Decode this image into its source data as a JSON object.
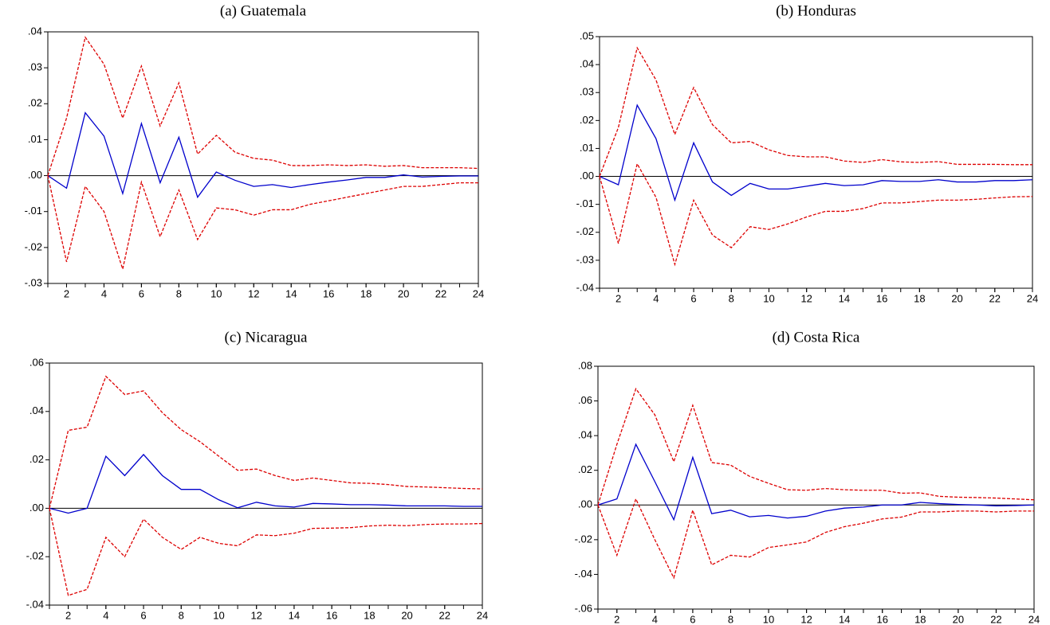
{
  "chart_data": [
    {
      "type": "line",
      "title": "(a) Guatemala",
      "x": [
        1,
        2,
        3,
        4,
        5,
        6,
        7,
        8,
        9,
        10,
        11,
        12,
        13,
        14,
        15,
        16,
        17,
        18,
        19,
        20,
        21,
        22,
        23,
        24
      ],
      "xlim": [
        1,
        24
      ],
      "xticks": [
        2,
        4,
        6,
        8,
        10,
        12,
        14,
        16,
        18,
        20,
        22,
        24
      ],
      "ylim": [
        -0.03,
        0.04
      ],
      "yticks": [
        {
          "value": 0.04,
          "label": ".04"
        },
        {
          "value": 0.03,
          "label": ".03"
        },
        {
          "value": 0.02,
          "label": ".02"
        },
        {
          "value": 0.01,
          "label": ".01"
        },
        {
          "value": 0,
          "label": ".00"
        },
        {
          "value": -0.01,
          "label": "-.01"
        },
        {
          "value": -0.02,
          "label": "-.02"
        },
        {
          "value": -0.03,
          "label": "-.03"
        }
      ],
      "zero_line": true,
      "series": [
        {
          "color": "#0000cc",
          "style": "solid",
          "values": [
            0,
            -0.0035,
            0.0175,
            0.011,
            -0.005,
            0.0145,
            -0.002,
            0.0107,
            -0.006,
            0.001,
            -0.0013,
            -0.003,
            -0.0025,
            -0.0033,
            -0.0025,
            -0.0018,
            -0.0012,
            -0.0005,
            -0.0005,
            0.0002,
            -0.0004,
            -0.0002,
            -0.0001,
            -0.0001
          ]
        },
        {
          "color": "#dd0000",
          "style": "dashed",
          "values": [
            0,
            0.016,
            0.0385,
            0.031,
            0.016,
            0.0305,
            0.0138,
            0.0258,
            0.006,
            0.0112,
            0.0065,
            0.0048,
            0.0043,
            0.0028,
            0.0028,
            0.003,
            0.0028,
            0.003,
            0.0026,
            0.0028,
            0.0022,
            0.0022,
            0.0022,
            0.002
          ]
        },
        {
          "color": "#dd0000",
          "style": "dashed",
          "values": [
            0,
            -0.024,
            -0.003,
            -0.01,
            -0.026,
            -0.0018,
            -0.017,
            -0.004,
            -0.0178,
            -0.009,
            -0.0095,
            -0.011,
            -0.0095,
            -0.0095,
            -0.008,
            -0.007,
            -0.006,
            -0.005,
            -0.004,
            -0.003,
            -0.003,
            -0.0025,
            -0.002,
            -0.002
          ]
        }
      ]
    },
    {
      "type": "line",
      "title": "(b) Honduras",
      "x": [
        1,
        2,
        3,
        4,
        5,
        6,
        7,
        8,
        9,
        10,
        11,
        12,
        13,
        14,
        15,
        16,
        17,
        18,
        19,
        20,
        21,
        22,
        23,
        24
      ],
      "xlim": [
        1,
        24
      ],
      "xticks": [
        2,
        4,
        6,
        8,
        10,
        12,
        14,
        16,
        18,
        20,
        22,
        24
      ],
      "ylim": [
        -0.04,
        0.05
      ],
      "yticks": [
        {
          "value": 0.05,
          "label": ".05"
        },
        {
          "value": 0.04,
          "label": ".04"
        },
        {
          "value": 0.03,
          "label": ".03"
        },
        {
          "value": 0.02,
          "label": ".02"
        },
        {
          "value": 0.01,
          "label": ".01"
        },
        {
          "value": 0,
          "label": ".00"
        },
        {
          "value": -0.01,
          "label": "-.01"
        },
        {
          "value": -0.02,
          "label": "-.02"
        },
        {
          "value": -0.03,
          "label": "-.03"
        },
        {
          "value": -0.04,
          "label": "-.04"
        }
      ],
      "zero_line": true,
      "series": [
        {
          "color": "#0000cc",
          "style": "solid",
          "values": [
            0,
            -0.003,
            0.0255,
            0.0135,
            -0.0085,
            0.012,
            -0.002,
            -0.0068,
            -0.0025,
            -0.0045,
            -0.0045,
            -0.0035,
            -0.0025,
            -0.0033,
            -0.003,
            -0.0015,
            -0.0018,
            -0.0018,
            -0.0012,
            -0.002,
            -0.002,
            -0.0015,
            -0.0015,
            -0.0012
          ]
        },
        {
          "color": "#dd0000",
          "style": "dashed",
          "values": [
            0,
            0.0175,
            0.046,
            0.0345,
            0.015,
            0.0318,
            0.0185,
            0.012,
            0.0125,
            0.0095,
            0.0075,
            0.007,
            0.007,
            0.0055,
            0.005,
            0.006,
            0.0052,
            0.005,
            0.0053,
            0.0043,
            0.0043,
            0.0043,
            0.0042,
            0.0042
          ]
        },
        {
          "color": "#dd0000",
          "style": "dashed",
          "values": [
            0,
            -0.024,
            0.0045,
            -0.0075,
            -0.0315,
            -0.0085,
            -0.021,
            -0.0255,
            -0.018,
            -0.019,
            -0.017,
            -0.0145,
            -0.0125,
            -0.0125,
            -0.0115,
            -0.0095,
            -0.0095,
            -0.009,
            -0.0085,
            -0.0085,
            -0.0082,
            -0.0077,
            -0.0073,
            -0.0072
          ]
        }
      ]
    },
    {
      "type": "line",
      "title": "(c) Nicaragua",
      "x": [
        1,
        2,
        3,
        4,
        5,
        6,
        7,
        8,
        9,
        10,
        11,
        12,
        13,
        14,
        15,
        16,
        17,
        18,
        19,
        20,
        21,
        22,
        23,
        24
      ],
      "xlim": [
        1,
        24
      ],
      "xticks": [
        2,
        4,
        6,
        8,
        10,
        12,
        14,
        16,
        18,
        20,
        22,
        24
      ],
      "ylim": [
        -0.04,
        0.06
      ],
      "yticks": [
        {
          "value": 0.06,
          "label": ".06"
        },
        {
          "value": 0.04,
          "label": ".04"
        },
        {
          "value": 0.02,
          "label": ".02"
        },
        {
          "value": 0,
          "label": ".00"
        },
        {
          "value": -0.02,
          "label": "-.02"
        },
        {
          "value": -0.04,
          "label": "-.04"
        }
      ],
      "zero_line": true,
      "series": [
        {
          "color": "#0000cc",
          "style": "solid",
          "values": [
            0,
            -0.002,
            0,
            0.0215,
            0.0135,
            0.0222,
            0.0135,
            0.0078,
            0.0078,
            0.0035,
            0.0002,
            0.0025,
            0.001,
            0.0005,
            0.002,
            0.0018,
            0.0015,
            0.0015,
            0.0013,
            0.001,
            0.001,
            0.001,
            0.0008,
            0.0008
          ]
        },
        {
          "color": "#dd0000",
          "style": "dashed",
          "values": [
            0,
            0.0322,
            0.0335,
            0.0545,
            0.047,
            0.0485,
            0.0395,
            0.0325,
            0.0275,
            0.0215,
            0.0157,
            0.0162,
            0.0135,
            0.0115,
            0.0125,
            0.0115,
            0.0105,
            0.0103,
            0.0098,
            0.009,
            0.0088,
            0.0085,
            0.0082,
            0.008
          ]
        },
        {
          "color": "#dd0000",
          "style": "dashed",
          "values": [
            0,
            -0.036,
            -0.0335,
            -0.012,
            -0.02,
            -0.0045,
            -0.012,
            -0.017,
            -0.012,
            -0.0145,
            -0.0155,
            -0.011,
            -0.0113,
            -0.0103,
            -0.0083,
            -0.0082,
            -0.008,
            -0.0073,
            -0.007,
            -0.0072,
            -0.0067,
            -0.0065,
            -0.0065,
            -0.0063
          ]
        }
      ]
    },
    {
      "type": "line",
      "title": "(d) Costa Rica",
      "x": [
        1,
        2,
        3,
        4,
        5,
        6,
        7,
        8,
        9,
        10,
        11,
        12,
        13,
        14,
        15,
        16,
        17,
        18,
        19,
        20,
        21,
        22,
        23,
        24
      ],
      "xlim": [
        1,
        24
      ],
      "xticks": [
        2,
        4,
        6,
        8,
        10,
        12,
        14,
        16,
        18,
        20,
        22,
        24
      ],
      "ylim": [
        -0.06,
        0.08
      ],
      "yticks": [
        {
          "value": 0.08,
          "label": ".08"
        },
        {
          "value": 0.06,
          "label": ".06"
        },
        {
          "value": 0.04,
          "label": ".04"
        },
        {
          "value": 0.02,
          "label": ".02"
        },
        {
          "value": 0,
          "label": ".00"
        },
        {
          "value": -0.02,
          "label": "-.02"
        },
        {
          "value": -0.04,
          "label": "-.04"
        },
        {
          "value": -0.06,
          "label": "-.06"
        }
      ],
      "zero_line": true,
      "series": [
        {
          "color": "#0000cc",
          "style": "solid",
          "values": [
            0,
            0.0035,
            0.035,
            0.0135,
            -0.0085,
            0.0275,
            -0.005,
            -0.003,
            -0.0068,
            -0.006,
            -0.0075,
            -0.0065,
            -0.0035,
            -0.0018,
            -0.0012,
            0,
            0,
            0.0015,
            0.0008,
            0.0003,
            0,
            -0.0005,
            -0.0003,
            0
          ]
        },
        {
          "color": "#dd0000",
          "style": "dashed",
          "values": [
            0,
            0.035,
            0.067,
            0.052,
            0.025,
            0.0575,
            0.0245,
            0.023,
            0.0165,
            0.0125,
            0.0088,
            0.0085,
            0.0095,
            0.0088,
            0.0085,
            0.0085,
            0.0068,
            0.007,
            0.005,
            0.0045,
            0.0043,
            0.004,
            0.0035,
            0.003
          ]
        },
        {
          "color": "#dd0000",
          "style": "dashed",
          "values": [
            0,
            -0.029,
            0.0035,
            -0.02,
            -0.042,
            -0.003,
            -0.0345,
            -0.029,
            -0.03,
            -0.0245,
            -0.023,
            -0.0213,
            -0.0158,
            -0.0125,
            -0.0105,
            -0.008,
            -0.007,
            -0.004,
            -0.004,
            -0.0035,
            -0.0035,
            -0.004,
            -0.0035,
            -0.0035
          ]
        }
      ]
    }
  ]
}
